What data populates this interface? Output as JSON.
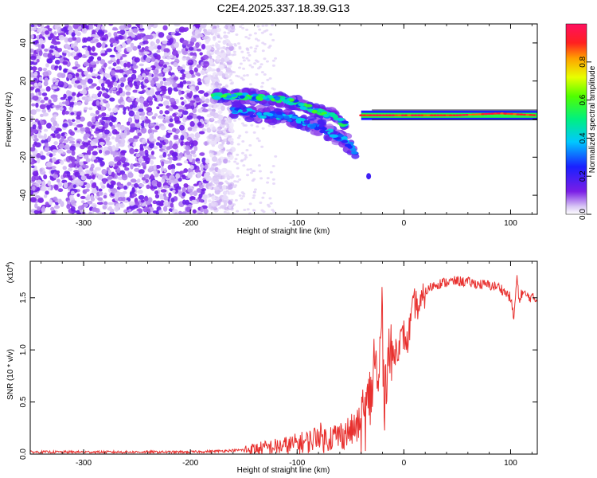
{
  "title": "C2E4.2025.337.18.39.G13",
  "chart_data": [
    {
      "type": "heatmap",
      "xlabel": "Height of straight line (km)",
      "ylabel": "Frequency (Hz)",
      "xlim": [
        -350,
        125
      ],
      "ylim": [
        -50,
        50
      ],
      "xticks": [
        -300,
        -200,
        -100,
        0,
        100
      ],
      "yticks": [
        -40,
        -20,
        0,
        20,
        40
      ],
      "colorbar": {
        "label": "Normalized spectral amplitude",
        "range": [
          0.0,
          1.0
        ],
        "ticks": [
          "0.0",
          "0.2",
          "0.4",
          "0.6",
          "0.8"
        ],
        "colormap": "rainbow (white-purple-blue-cyan-green-yellow-red-magenta)"
      },
      "features": [
        {
          "name": "noise",
          "x_range": [
            -350,
            -180
          ],
          "y_range": [
            -50,
            50
          ],
          "amplitude": 0.1
        },
        {
          "name": "upper band",
          "points": [
            [
              -178,
              12
            ],
            [
              -150,
              12
            ],
            [
              -130,
              11
            ],
            [
              -110,
              10
            ],
            [
              -95,
              7
            ],
            [
              -80,
              4
            ],
            [
              -65,
              1
            ],
            [
              -55,
              -3
            ]
          ],
          "amplitude": 0.5
        },
        {
          "name": "lower band",
          "points": [
            [
              -160,
              5
            ],
            [
              -140,
              3
            ],
            [
              -120,
              2
            ],
            [
              -100,
              0
            ],
            [
              -85,
              -3
            ],
            [
              -70,
              -7
            ],
            [
              -55,
              -11
            ],
            [
              -45,
              -17
            ]
          ],
          "amplitude": 0.35
        },
        {
          "name": "steady line",
          "points": [
            [
              -40,
              2
            ],
            [
              0,
              2
            ],
            [
              50,
              2
            ],
            [
              90,
              3
            ],
            [
              125,
              2
            ]
          ],
          "amplitude": 0.9
        },
        {
          "name": "isolated blob",
          "points": [
            [
              -33,
              -30
            ]
          ],
          "amplitude": 0.2
        }
      ]
    },
    {
      "type": "line",
      "xlabel": "Height of straight line (km)",
      "ylabel": "SNR (10 * v/v)",
      "y_multiplier": "(x10^4)",
      "xlim": [
        -350,
        125
      ],
      "ylim": [
        0,
        1.85
      ],
      "xticks": [
        -300,
        -200,
        -100,
        0,
        100
      ],
      "yticks": [
        "0.0",
        "0.5",
        "1.0",
        "1.5"
      ],
      "series": [
        {
          "color": "#e8312f",
          "x": [
            -350,
            -300,
            -250,
            -200,
            -170,
            -150,
            -130,
            -110,
            -100,
            -90,
            -85,
            -80,
            -75,
            -70,
            -60,
            -50,
            -45,
            -40,
            -35,
            -30,
            -27,
            -24,
            -21,
            -18,
            -15,
            -12,
            -10,
            -8,
            -5,
            -2,
            0,
            3,
            6,
            10,
            15,
            20,
            25,
            30,
            40,
            50,
            60,
            70,
            80,
            90,
            95,
            100,
            103,
            106,
            108,
            110,
            115,
            120,
            125
          ],
          "y": [
            0.02,
            0.02,
            0.02,
            0.02,
            0.03,
            0.04,
            0.06,
            0.08,
            0.1,
            0.12,
            0.14,
            0.2,
            0.14,
            0.16,
            0.18,
            0.22,
            0.25,
            0.3,
            0.4,
            0.6,
            1.0,
            0.5,
            1.4,
            0.55,
            1.0,
            0.9,
            0.95,
            1.0,
            1.05,
            1.1,
            1.15,
            1.05,
            1.25,
            1.45,
            1.4,
            1.55,
            1.6,
            1.63,
            1.65,
            1.66,
            1.65,
            1.63,
            1.62,
            1.6,
            1.55,
            1.5,
            1.3,
            1.7,
            1.45,
            1.55,
            1.52,
            1.5,
            1.48
          ]
        }
      ]
    }
  ]
}
